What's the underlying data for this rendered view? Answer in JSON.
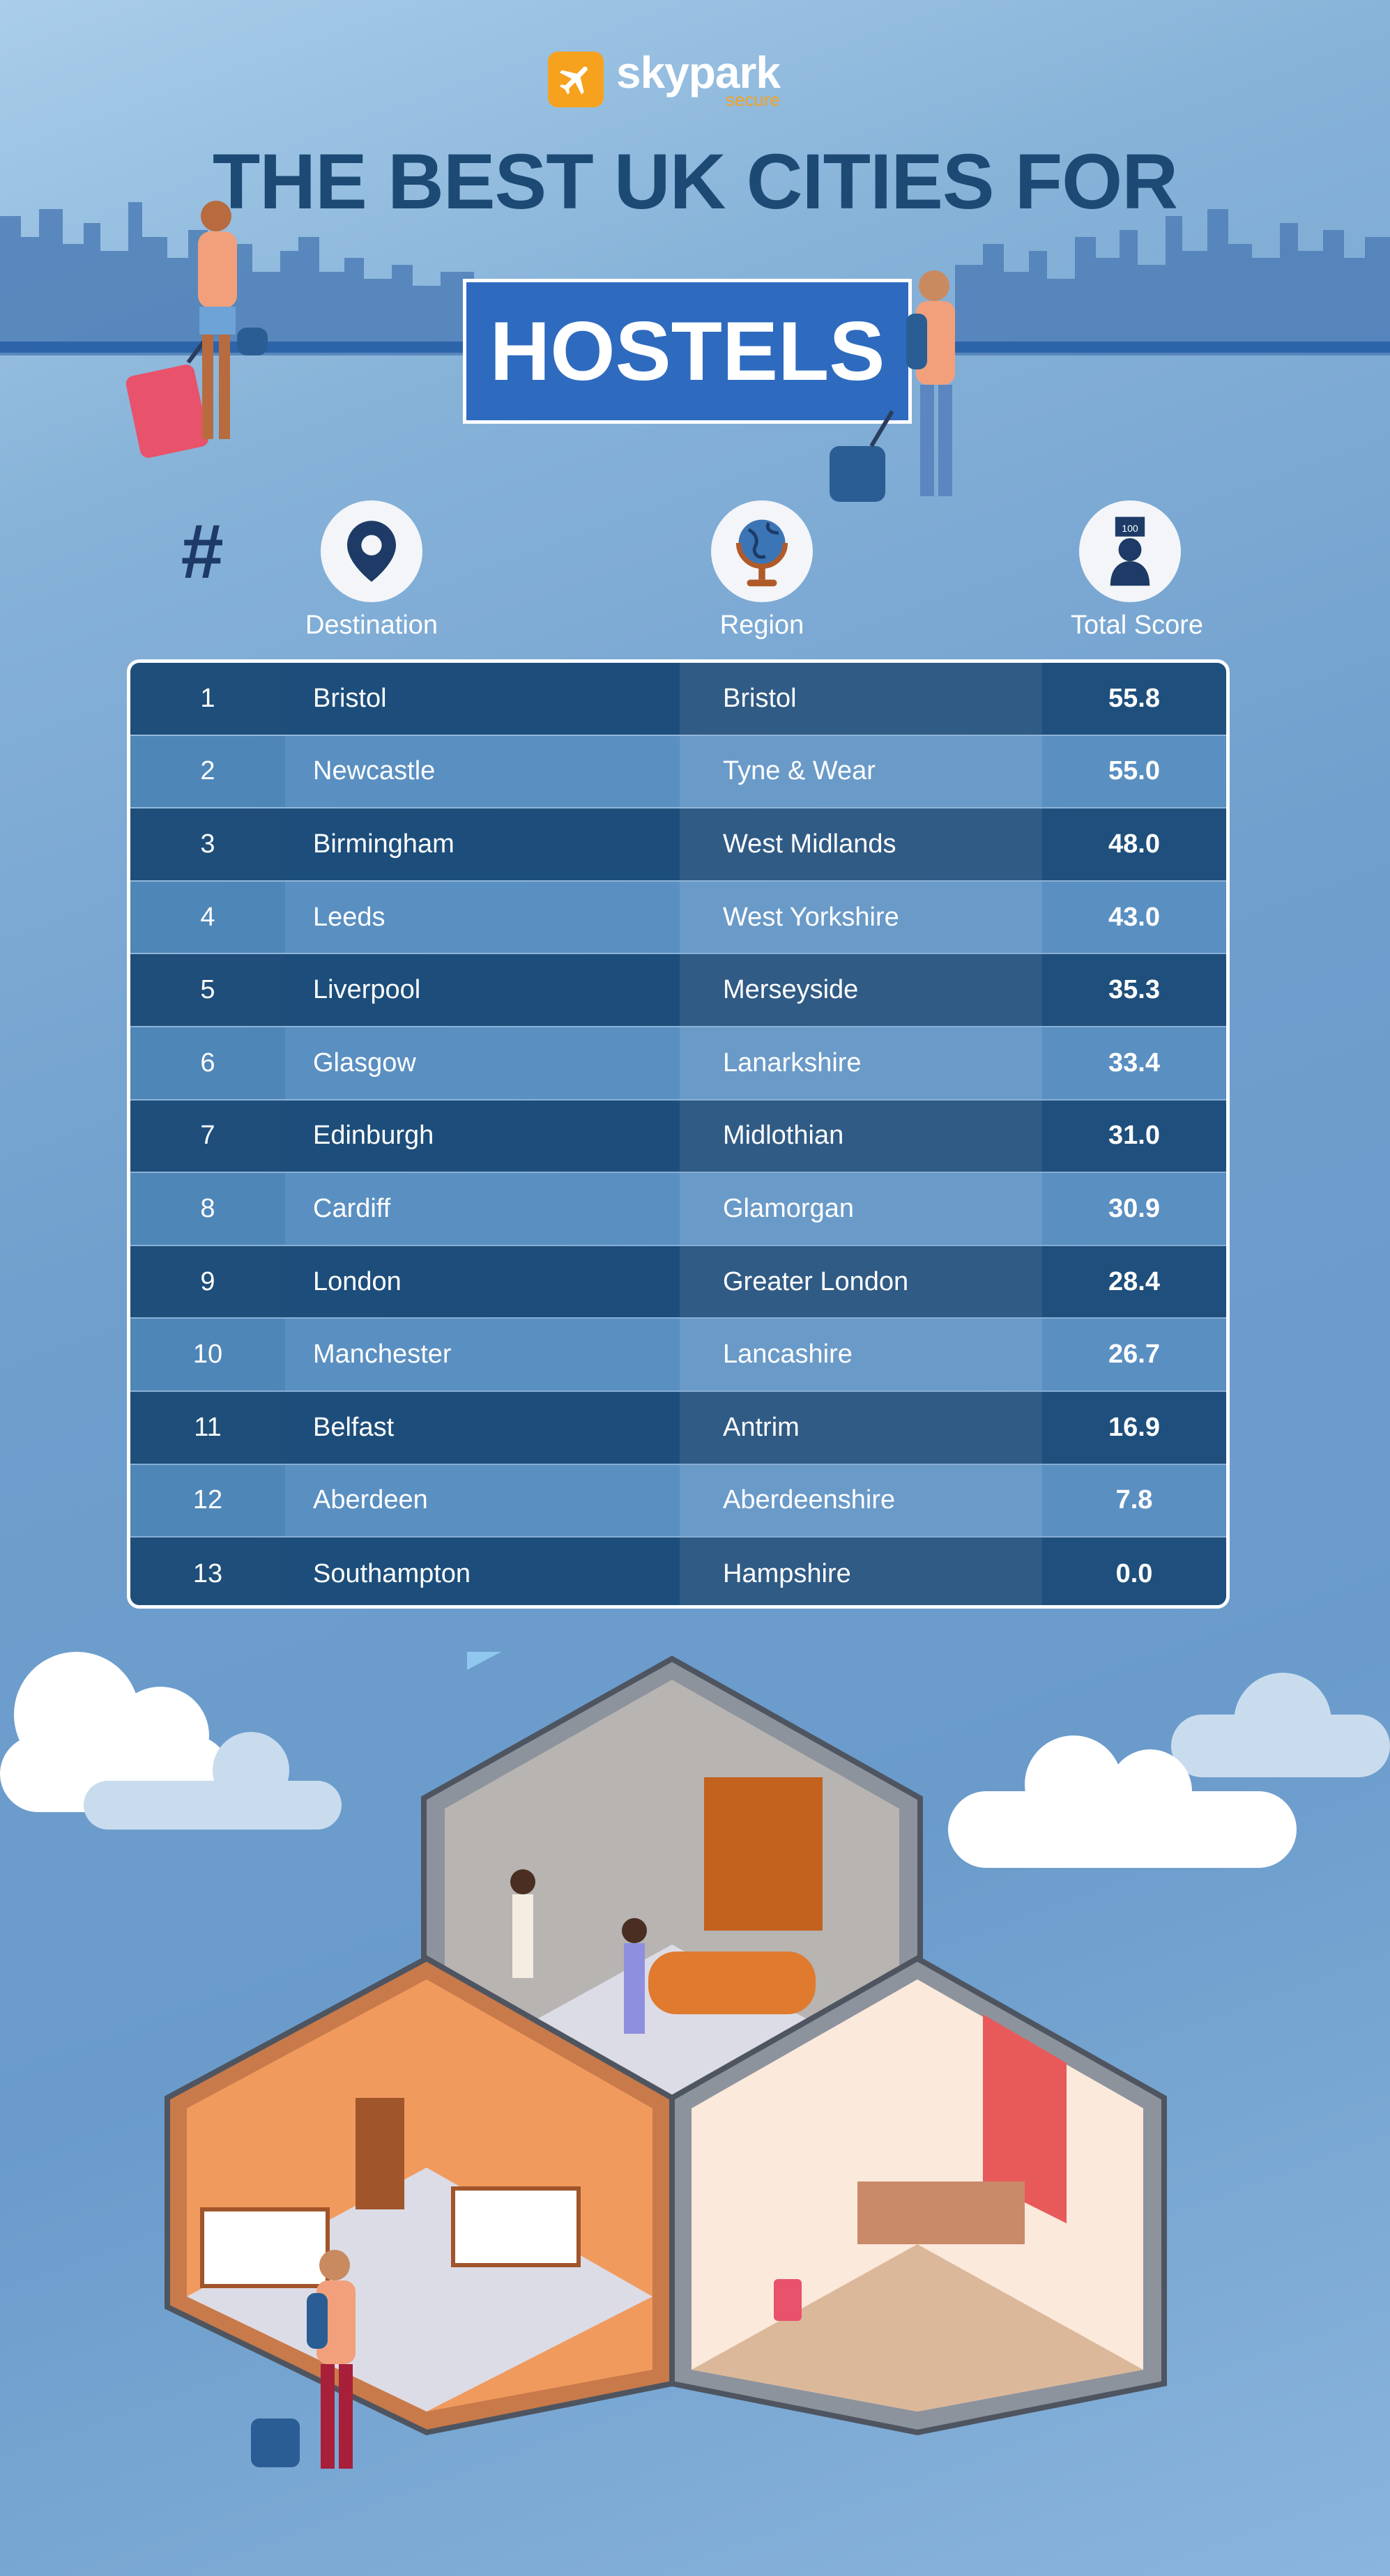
{
  "brand": {
    "name": "skypark",
    "sub": "secure",
    "accent": "#f6a21e"
  },
  "title": "THE BEST UK CITIES FOR",
  "highlight": "HOSTELS",
  "columns": {
    "rank_symbol": "#",
    "destination": "Destination",
    "region": "Region",
    "total_score": "Total Score",
    "score_badge": "100"
  },
  "rows": [
    {
      "rank": "1",
      "destination": "Bristol",
      "region": "Bristol",
      "score": "55.8"
    },
    {
      "rank": "2",
      "destination": "Newcastle",
      "region": "Tyne & Wear",
      "score": "55.0"
    },
    {
      "rank": "3",
      "destination": "Birmingham",
      "region": "West Midlands",
      "score": "48.0"
    },
    {
      "rank": "4",
      "destination": "Leeds",
      "region": "West Yorkshire",
      "score": "43.0"
    },
    {
      "rank": "5",
      "destination": "Liverpool",
      "region": "Merseyside",
      "score": "35.3"
    },
    {
      "rank": "6",
      "destination": "Glasgow",
      "region": "Lanarkshire",
      "score": "33.4"
    },
    {
      "rank": "7",
      "destination": "Edinburgh",
      "region": "Midlothian",
      "score": "31.0"
    },
    {
      "rank": "8",
      "destination": "Cardiff",
      "region": "Glamorgan",
      "score": "30.9"
    },
    {
      "rank": "9",
      "destination": "London",
      "region": "Greater London",
      "score": "28.4"
    },
    {
      "rank": "10",
      "destination": "Manchester",
      "region": "Lancashire",
      "score": "26.7"
    },
    {
      "rank": "11",
      "destination": "Belfast",
      "region": "Antrim",
      "score": "16.9"
    },
    {
      "rank": "12",
      "destination": "Aberdeen",
      "region": "Aberdeenshire",
      "score": "7.8"
    },
    {
      "rank": "13",
      "destination": "Southampton",
      "region": "Hampshire",
      "score": "0.0"
    }
  ],
  "colors": {
    "title": "#1d4a74",
    "highlight_box": "#2e6bbf",
    "row_dark": "#1d4e7b",
    "row_light": "#5a8fc1"
  }
}
